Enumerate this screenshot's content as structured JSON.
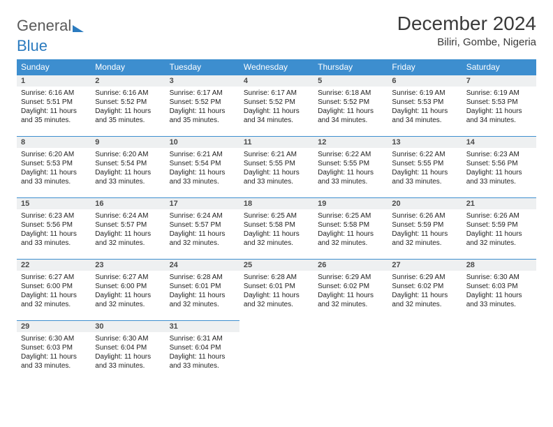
{
  "logo": {
    "word1": "General",
    "word2": "Blue"
  },
  "title": "December 2024",
  "location": "Biliri, Gombe, Nigeria",
  "colors": {
    "header_bg": "#3d8ecf",
    "header_text": "#ffffff",
    "daynum_bg": "#eef0f1",
    "daynum_border": "#3d8ecf",
    "text": "#222222",
    "logo_gray": "#5a5a5a",
    "logo_blue": "#2b7bbf"
  },
  "columns": [
    "Sunday",
    "Monday",
    "Tuesday",
    "Wednesday",
    "Thursday",
    "Friday",
    "Saturday"
  ],
  "weeks": [
    [
      {
        "day": "1",
        "sunrise": "Sunrise: 6:16 AM",
        "sunset": "Sunset: 5:51 PM",
        "dl1": "Daylight: 11 hours",
        "dl2": "and 35 minutes."
      },
      {
        "day": "2",
        "sunrise": "Sunrise: 6:16 AM",
        "sunset": "Sunset: 5:52 PM",
        "dl1": "Daylight: 11 hours",
        "dl2": "and 35 minutes."
      },
      {
        "day": "3",
        "sunrise": "Sunrise: 6:17 AM",
        "sunset": "Sunset: 5:52 PM",
        "dl1": "Daylight: 11 hours",
        "dl2": "and 35 minutes."
      },
      {
        "day": "4",
        "sunrise": "Sunrise: 6:17 AM",
        "sunset": "Sunset: 5:52 PM",
        "dl1": "Daylight: 11 hours",
        "dl2": "and 34 minutes."
      },
      {
        "day": "5",
        "sunrise": "Sunrise: 6:18 AM",
        "sunset": "Sunset: 5:52 PM",
        "dl1": "Daylight: 11 hours",
        "dl2": "and 34 minutes."
      },
      {
        "day": "6",
        "sunrise": "Sunrise: 6:19 AM",
        "sunset": "Sunset: 5:53 PM",
        "dl1": "Daylight: 11 hours",
        "dl2": "and 34 minutes."
      },
      {
        "day": "7",
        "sunrise": "Sunrise: 6:19 AM",
        "sunset": "Sunset: 5:53 PM",
        "dl1": "Daylight: 11 hours",
        "dl2": "and 34 minutes."
      }
    ],
    [
      {
        "day": "8",
        "sunrise": "Sunrise: 6:20 AM",
        "sunset": "Sunset: 5:53 PM",
        "dl1": "Daylight: 11 hours",
        "dl2": "and 33 minutes."
      },
      {
        "day": "9",
        "sunrise": "Sunrise: 6:20 AM",
        "sunset": "Sunset: 5:54 PM",
        "dl1": "Daylight: 11 hours",
        "dl2": "and 33 minutes."
      },
      {
        "day": "10",
        "sunrise": "Sunrise: 6:21 AM",
        "sunset": "Sunset: 5:54 PM",
        "dl1": "Daylight: 11 hours",
        "dl2": "and 33 minutes."
      },
      {
        "day": "11",
        "sunrise": "Sunrise: 6:21 AM",
        "sunset": "Sunset: 5:55 PM",
        "dl1": "Daylight: 11 hours",
        "dl2": "and 33 minutes."
      },
      {
        "day": "12",
        "sunrise": "Sunrise: 6:22 AM",
        "sunset": "Sunset: 5:55 PM",
        "dl1": "Daylight: 11 hours",
        "dl2": "and 33 minutes."
      },
      {
        "day": "13",
        "sunrise": "Sunrise: 6:22 AM",
        "sunset": "Sunset: 5:55 PM",
        "dl1": "Daylight: 11 hours",
        "dl2": "and 33 minutes."
      },
      {
        "day": "14",
        "sunrise": "Sunrise: 6:23 AM",
        "sunset": "Sunset: 5:56 PM",
        "dl1": "Daylight: 11 hours",
        "dl2": "and 33 minutes."
      }
    ],
    [
      {
        "day": "15",
        "sunrise": "Sunrise: 6:23 AM",
        "sunset": "Sunset: 5:56 PM",
        "dl1": "Daylight: 11 hours",
        "dl2": "and 33 minutes."
      },
      {
        "day": "16",
        "sunrise": "Sunrise: 6:24 AM",
        "sunset": "Sunset: 5:57 PM",
        "dl1": "Daylight: 11 hours",
        "dl2": "and 32 minutes."
      },
      {
        "day": "17",
        "sunrise": "Sunrise: 6:24 AM",
        "sunset": "Sunset: 5:57 PM",
        "dl1": "Daylight: 11 hours",
        "dl2": "and 32 minutes."
      },
      {
        "day": "18",
        "sunrise": "Sunrise: 6:25 AM",
        "sunset": "Sunset: 5:58 PM",
        "dl1": "Daylight: 11 hours",
        "dl2": "and 32 minutes."
      },
      {
        "day": "19",
        "sunrise": "Sunrise: 6:25 AM",
        "sunset": "Sunset: 5:58 PM",
        "dl1": "Daylight: 11 hours",
        "dl2": "and 32 minutes."
      },
      {
        "day": "20",
        "sunrise": "Sunrise: 6:26 AM",
        "sunset": "Sunset: 5:59 PM",
        "dl1": "Daylight: 11 hours",
        "dl2": "and 32 minutes."
      },
      {
        "day": "21",
        "sunrise": "Sunrise: 6:26 AM",
        "sunset": "Sunset: 5:59 PM",
        "dl1": "Daylight: 11 hours",
        "dl2": "and 32 minutes."
      }
    ],
    [
      {
        "day": "22",
        "sunrise": "Sunrise: 6:27 AM",
        "sunset": "Sunset: 6:00 PM",
        "dl1": "Daylight: 11 hours",
        "dl2": "and 32 minutes."
      },
      {
        "day": "23",
        "sunrise": "Sunrise: 6:27 AM",
        "sunset": "Sunset: 6:00 PM",
        "dl1": "Daylight: 11 hours",
        "dl2": "and 32 minutes."
      },
      {
        "day": "24",
        "sunrise": "Sunrise: 6:28 AM",
        "sunset": "Sunset: 6:01 PM",
        "dl1": "Daylight: 11 hours",
        "dl2": "and 32 minutes."
      },
      {
        "day": "25",
        "sunrise": "Sunrise: 6:28 AM",
        "sunset": "Sunset: 6:01 PM",
        "dl1": "Daylight: 11 hours",
        "dl2": "and 32 minutes."
      },
      {
        "day": "26",
        "sunrise": "Sunrise: 6:29 AM",
        "sunset": "Sunset: 6:02 PM",
        "dl1": "Daylight: 11 hours",
        "dl2": "and 32 minutes."
      },
      {
        "day": "27",
        "sunrise": "Sunrise: 6:29 AM",
        "sunset": "Sunset: 6:02 PM",
        "dl1": "Daylight: 11 hours",
        "dl2": "and 32 minutes."
      },
      {
        "day": "28",
        "sunrise": "Sunrise: 6:30 AM",
        "sunset": "Sunset: 6:03 PM",
        "dl1": "Daylight: 11 hours",
        "dl2": "and 33 minutes."
      }
    ],
    [
      {
        "day": "29",
        "sunrise": "Sunrise: 6:30 AM",
        "sunset": "Sunset: 6:03 PM",
        "dl1": "Daylight: 11 hours",
        "dl2": "and 33 minutes."
      },
      {
        "day": "30",
        "sunrise": "Sunrise: 6:30 AM",
        "sunset": "Sunset: 6:04 PM",
        "dl1": "Daylight: 11 hours",
        "dl2": "and 33 minutes."
      },
      {
        "day": "31",
        "sunrise": "Sunrise: 6:31 AM",
        "sunset": "Sunset: 6:04 PM",
        "dl1": "Daylight: 11 hours",
        "dl2": "and 33 minutes."
      },
      {
        "empty": true,
        "day": "",
        "sunrise": "",
        "sunset": "",
        "dl1": "",
        "dl2": ""
      },
      {
        "empty": true,
        "day": "",
        "sunrise": "",
        "sunset": "",
        "dl1": "",
        "dl2": ""
      },
      {
        "empty": true,
        "day": "",
        "sunrise": "",
        "sunset": "",
        "dl1": "",
        "dl2": ""
      },
      {
        "empty": true,
        "day": "",
        "sunrise": "",
        "sunset": "",
        "dl1": "",
        "dl2": ""
      }
    ]
  ]
}
